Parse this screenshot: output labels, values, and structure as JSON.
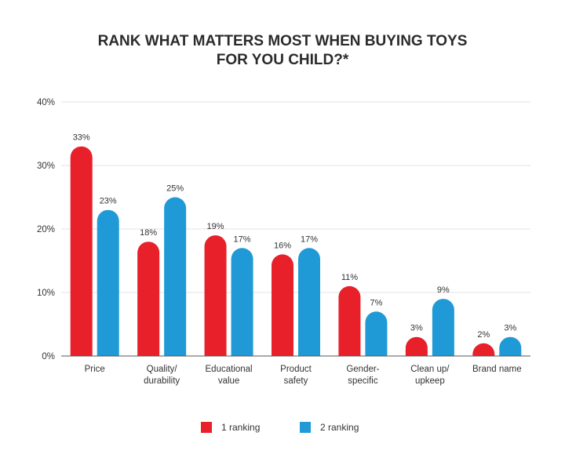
{
  "chart_data": {
    "type": "bar",
    "title_lines": [
      "RANK WHAT MATTERS MOST WHEN BUYING TOYS",
      "FOR YOU CHILD?*"
    ],
    "categories": [
      [
        "Price"
      ],
      [
        "Quality/",
        "durability"
      ],
      [
        "Educational",
        "value"
      ],
      [
        "Product",
        "safety"
      ],
      [
        "Gender-",
        "specific"
      ],
      [
        "Clean up/",
        "upkeep"
      ],
      [
        "Brand name"
      ]
    ],
    "series": [
      {
        "name": "1 ranking",
        "color": "#e8202a",
        "values": [
          33,
          18,
          19,
          16,
          11,
          3,
          2
        ],
        "labels": [
          "33%",
          "18%",
          "19%",
          "16%",
          "11%",
          "3%",
          "2%"
        ]
      },
      {
        "name": "2 ranking",
        "color": "#1f9ad6",
        "values": [
          23,
          25,
          17,
          17,
          7,
          9,
          3
        ],
        "labels": [
          "23%",
          "25%",
          "17%",
          "17%",
          "7%",
          "9%",
          "3%"
        ]
      }
    ],
    "yticks": [
      {
        "value": 0,
        "label": "0%"
      },
      {
        "value": 10,
        "label": "10%"
      },
      {
        "value": 20,
        "label": "20%"
      },
      {
        "value": 30,
        "label": "30%"
      },
      {
        "value": 40,
        "label": "40%"
      }
    ],
    "ylim": [
      0,
      40
    ],
    "grid": true,
    "legend_position": "bottom-center"
  }
}
